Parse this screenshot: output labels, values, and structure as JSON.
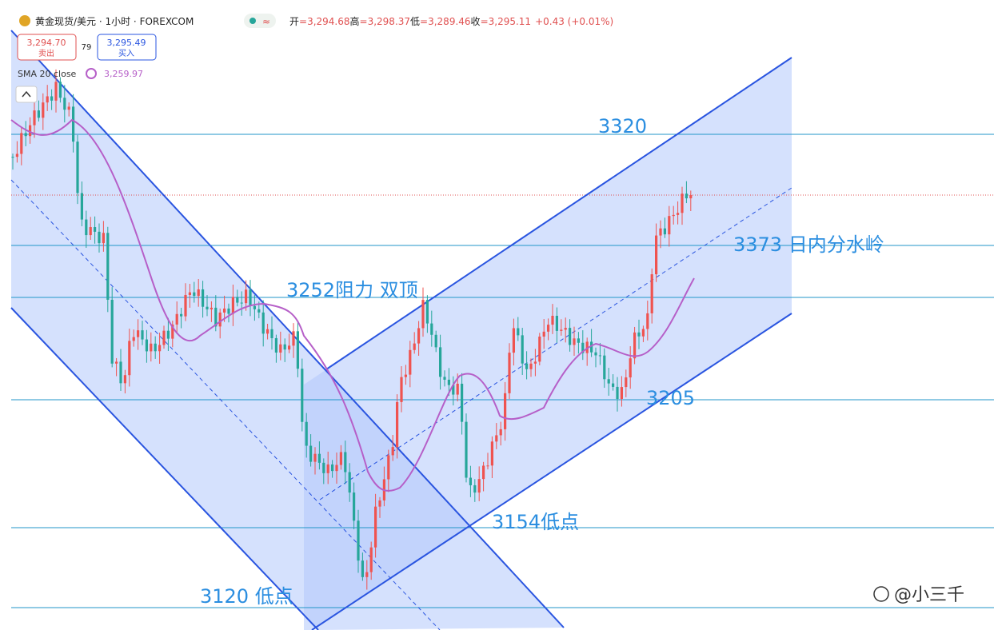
{
  "header": {
    "symbol": "黄金现货/美元 · 1小时 · FOREXCOM",
    "ohlc": [
      {
        "label": "开",
        "value": "=3,294.68"
      },
      {
        "label": "高",
        "value": "=3,298.37"
      },
      {
        "label": "低",
        "value": "=3,289.46"
      },
      {
        "label": "收",
        "value": "=3,295.11"
      }
    ],
    "change": "+0.43 (+0.01%)"
  },
  "trade": {
    "sell_price": "3,294.70",
    "sell_label": "卖出",
    "spread": "79",
    "buy_price": "3,295.49",
    "buy_label": "买入"
  },
  "indicator": {
    "name": "SMA 20 close",
    "value": "3,259.97"
  },
  "annotations": [
    "3320",
    "3373 日内分水岭",
    "3252阻力 双顶",
    "3205",
    "3154低点",
    "3120 低点"
  ],
  "watermark": "@小三千"
}
